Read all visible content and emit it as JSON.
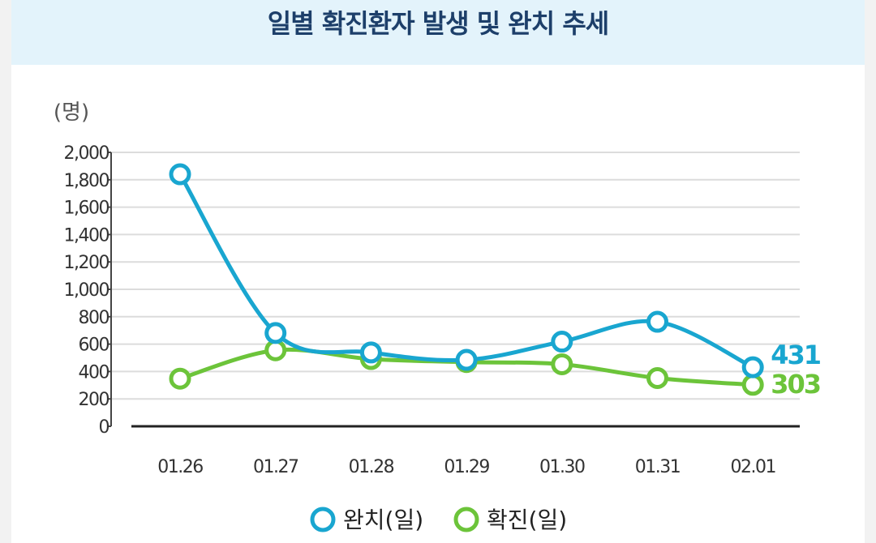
{
  "header": {
    "title": "일별 확진환자 발생 및 완치 추세"
  },
  "chart_data": {
    "type": "line",
    "title": "일별 확진환자 발생 및 완치 추세",
    "ylabel": "(명)",
    "xlabel": "",
    "categories": [
      "01.26",
      "01.27",
      "01.28",
      "01.29",
      "01.30",
      "01.31",
      "02.01"
    ],
    "ylim": [
      0,
      2000
    ],
    "yticks": [
      0,
      200,
      400,
      600,
      800,
      1000,
      1200,
      1400,
      1600,
      1800,
      2000
    ],
    "ytick_labels": [
      "0",
      "200",
      "400",
      "600",
      "800",
      "1,000",
      "1,200",
      "1,400",
      "1,600",
      "1,800",
      "2,000"
    ],
    "grid": true,
    "legend_position": "bottom",
    "series": [
      {
        "name": "완치(일)",
        "color": "#19a6d0",
        "values": [
          1840,
          681,
          539,
          485,
          618,
          763,
          431
        ],
        "end_label": "431"
      },
      {
        "name": "확진(일)",
        "color": "#6cc43a",
        "values": [
          348,
          555,
          491,
          469,
          453,
          352,
          303
        ],
        "end_label": "303"
      }
    ]
  }
}
